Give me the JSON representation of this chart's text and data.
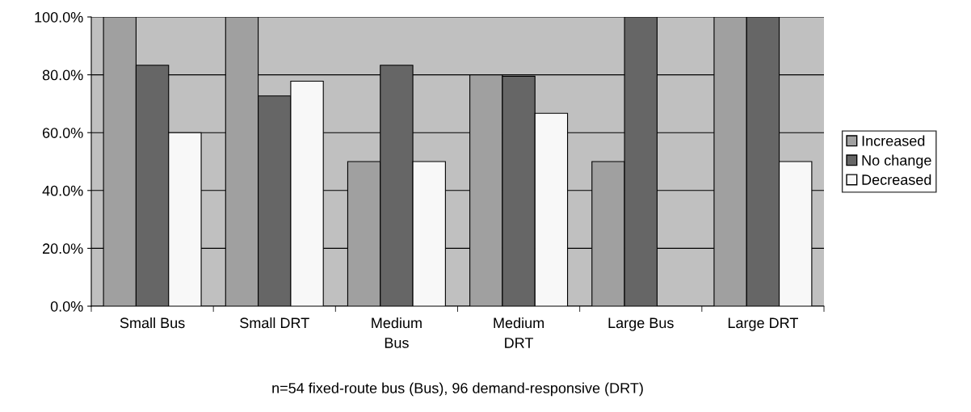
{
  "chart_data": {
    "type": "bar",
    "categories": [
      "Small Bus",
      "Small DRT",
      "Medium Bus",
      "Medium DRT",
      "Large Bus",
      "Large DRT"
    ],
    "series": [
      {
        "name": "Increased",
        "color": "#a0a0a0",
        "values": [
          100,
          100,
          50,
          80,
          50,
          100
        ]
      },
      {
        "name": "No change",
        "color": "#666666",
        "values": [
          83.3,
          72.7,
          83.3,
          79.5,
          100,
          100
        ]
      },
      {
        "name": "Decreased",
        "color": "#f8f8f8",
        "values": [
          60,
          77.8,
          50,
          66.7,
          null,
          50
        ]
      }
    ],
    "ylim": [
      0,
      100
    ],
    "yticks": [
      {
        "value": 0,
        "label": "0.0%"
      },
      {
        "value": 20,
        "label": "20.0%"
      },
      {
        "value": 40,
        "label": "40.0%"
      },
      {
        "value": 60,
        "label": "60.0%"
      },
      {
        "value": 80,
        "label": "80.0%"
      },
      {
        "value": 100,
        "label": "100.0%"
      }
    ],
    "grid": "y",
    "legend": "right",
    "annotations": [
      "n=54 fixed-route bus (Bus), 96 demand-responsive (DRT)"
    ]
  }
}
